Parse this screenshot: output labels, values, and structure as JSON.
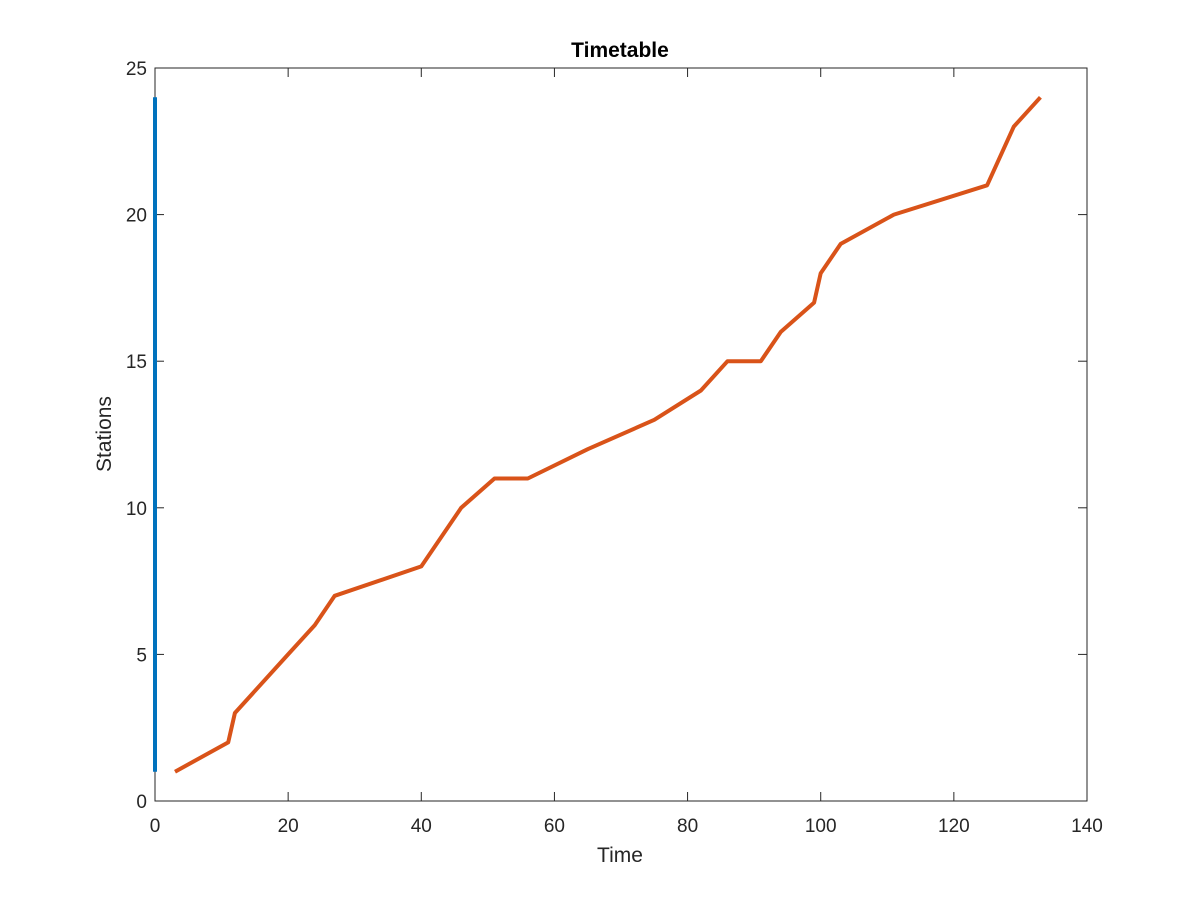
{
  "chart_data": {
    "type": "line",
    "title": "Timetable",
    "xlabel": "Time",
    "ylabel": "Stations",
    "xlim": [
      0,
      140
    ],
    "ylim": [
      0,
      25
    ],
    "xticks": [
      0,
      20,
      40,
      60,
      80,
      100,
      120,
      140
    ],
    "yticks": [
      0,
      5,
      10,
      15,
      20,
      25
    ],
    "grid": false,
    "legend": null,
    "series": [
      {
        "color": "#0072BD",
        "x": [
          0,
          0
        ],
        "y": [
          1,
          24
        ]
      },
      {
        "color": "#D95319",
        "x": [
          3,
          11,
          12,
          20,
          24,
          27,
          40,
          46,
          51,
          56,
          65,
          75,
          82,
          86,
          91,
          94,
          99,
          100,
          103,
          111,
          125,
          129,
          133
        ],
        "y": [
          1,
          2,
          3,
          5,
          6,
          7,
          8,
          10,
          11,
          11,
          12,
          13,
          14,
          15,
          15,
          16,
          17,
          18,
          19,
          20,
          21,
          23,
          24
        ]
      }
    ]
  }
}
